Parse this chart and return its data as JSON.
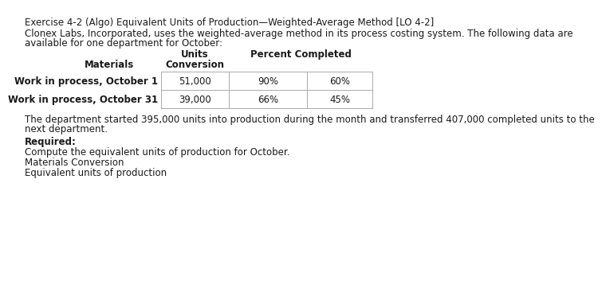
{
  "title": "Exercise 4-2 (Algo) Equivalent Units of Production—Weighted-Average Method [LO 4-2]",
  "intro_line1": "Clonex Labs, Incorporated, uses the weighted-average method in its process costing system. The following data are",
  "intro_line2": "available for one department for October:",
  "header1_units": "Units",
  "header1_pct": "Percent Completed",
  "header2_mat": "Materials",
  "header2_conv": "Conversion",
  "row1_label": "Work in process, October 1",
  "row1_units": "51,000",
  "row1_mat": "90%",
  "row1_conv": "60%",
  "row2_label": "Work in process, October 31",
  "row2_units": "39,000",
  "row2_mat": "66%",
  "row2_conv": "45%",
  "body_line1": "The department started 395,000 units into production during the month and transferred 407,000 completed units to the",
  "body_line2": "next department.",
  "required_label": "Required:",
  "compute_text": "Compute the equivalent units of production for October.",
  "labels_text": "Materials Conversion",
  "equiv_text": "Equivalent units of production",
  "bg_color": "#ffffff",
  "text_color": "#1a1a1a",
  "border_color": "#aaaaaa",
  "font_size": 8.5
}
